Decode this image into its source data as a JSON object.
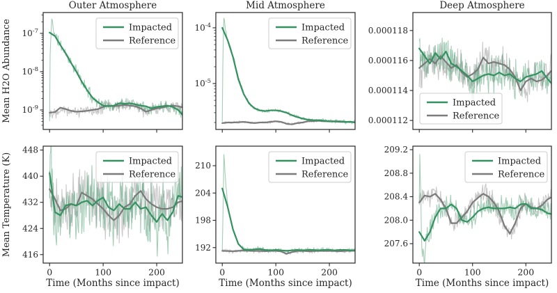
{
  "figure": {
    "colors": {
      "impacted": "#349160",
      "reference": "#7b7b7b",
      "axis": "#262626",
      "legend_border": "#cccccc",
      "legend_bg": "#ffffff"
    },
    "ylabel_top": "Mean H2O Abundance",
    "ylabel_bottom": "Mean Temperature (K)",
    "xlabel": "Time (Months since impact)"
  },
  "chart_data": [
    {
      "id": "outer-atmosphere-abundance",
      "row": 0,
      "col": 0,
      "type": "line",
      "title": "Outer Atmosphere",
      "ylabel": "Mean H2O Abundance",
      "yscale": "log",
      "ylim": [
        3.1e-10,
        3.5e-07
      ],
      "xlim": [
        -12,
        248
      ],
      "xticks": [
        {
          "v": 0,
          "label": "0"
        },
        {
          "v": 100,
          "label": "100"
        },
        {
          "v": 200,
          "label": "200"
        }
      ],
      "xtick_labels_visible": false,
      "yticks": [
        {
          "v": 1e-07,
          "label": "10^{-7}"
        },
        {
          "v": 1e-08,
          "label": "10^{-8}"
        },
        {
          "v": 1e-09,
          "label": "10^{-9}"
        }
      ],
      "minor_log_ticks": true,
      "legend": "upper-right",
      "x0": 0,
      "dx": 10,
      "series": [
        {
          "name": "Impacted",
          "role": "impacted",
          "smooth": [
            1.05e-07,
            8.5e-08,
            5e-08,
            3e-08,
            1.7e-08,
            1e-08,
            5.5e-09,
            3.3e-09,
            2.1e-09,
            1.6e-09,
            1.3e-09,
            1.25e-09,
            1.3e-09,
            1.5e-09,
            1.45e-09,
            1.5e-09,
            1.4e-09,
            1.3e-09,
            1.25e-09,
            1.1e-09,
            1.2e-09,
            1.25e-09,
            1.3e-09,
            1.2e-09,
            1e-09,
            7e-10
          ],
          "noise": {
            "amp": 0.16,
            "seed": 11,
            "pre_x": [
              0,
              2,
              4,
              7,
              10
            ],
            "pre_y": [
              5e-10,
              5e-08,
              2.3e-07,
              1.3e-07,
              1.05e-07
            ]
          }
        },
        {
          "name": "Reference",
          "role": "reference",
          "smooth": [
            8.5e-10,
            8.8e-10,
            1.15e-09,
            1.05e-09,
            9.5e-10,
            9e-10,
            9.2e-10,
            9.5e-10,
            1e-09,
            1.05e-09,
            1.2e-09,
            1.3e-09,
            1.25e-09,
            1.3e-09,
            1.35e-09,
            1.3e-09,
            1.25e-09,
            1.1e-09,
            9e-10,
            1e-09,
            1.1e-09,
            1.15e-09,
            1.25e-09,
            1.3e-09,
            1.25e-09,
            1.15e-09
          ],
          "noise": {
            "amp": 0.17,
            "seed": 22
          }
        }
      ]
    },
    {
      "id": "mid-atmosphere-abundance",
      "row": 0,
      "col": 1,
      "type": "line",
      "title": "Mid Atmosphere",
      "yscale": "log",
      "ylim": [
        1.5e-06,
        0.000188
      ],
      "xlim": [
        -12,
        248
      ],
      "xticks": [
        {
          "v": 0,
          "label": "0"
        },
        {
          "v": 100,
          "label": "100"
        },
        {
          "v": 200,
          "label": "200"
        }
      ],
      "xtick_labels_visible": false,
      "yticks": [
        {
          "v": 0.0001,
          "label": "10^{-4}"
        },
        {
          "v": 1e-05,
          "label": "10^{-5}"
        }
      ],
      "minor_log_ticks": true,
      "legend": "upper-right",
      "x0": 0,
      "dx": 10,
      "series": [
        {
          "name": "Impacted",
          "role": "impacted",
          "smooth": [
            0.0001,
            6e-05,
            3e-05,
            1.2e-05,
            6.5e-06,
            4.4e-06,
            3.6e-06,
            3.3e-06,
            3.2e-06,
            3.3e-06,
            3.3e-06,
            3.2e-06,
            3e-06,
            2.7e-06,
            2.5e-06,
            2.35e-06,
            2.25e-06,
            2.2e-06,
            2.2e-06,
            2.15e-06,
            2.1e-06,
            2.1e-06,
            2.1e-06,
            2.05e-06,
            2.05e-06,
            2e-06
          ],
          "noise": {
            "amp": 0.035,
            "seed": 33,
            "pre_x": [
              0,
              1.5,
              3,
              6,
              10
            ],
            "pre_y": [
              2e-06,
              3e-05,
              0.00015,
              9e-05,
              6.2e-05
            ]
          }
        },
        {
          "name": "Reference",
          "role": "reference",
          "smooth": [
            1.95e-06,
            2e-06,
            2e-06,
            2.02e-06,
            2.05e-06,
            2e-06,
            1.95e-06,
            2e-06,
            2e-06,
            2.05e-06,
            2.1e-06,
            2.05e-06,
            1.9e-06,
            1.85e-06,
            1.95e-06,
            2e-06,
            2.1e-06,
            2.12e-06,
            2.15e-06,
            2.1e-06,
            2.1e-06,
            2.08e-06,
            2.05e-06,
            2.05e-06,
            2.05e-06,
            2e-06
          ],
          "noise": {
            "amp": 0.025,
            "seed": 44
          }
        }
      ]
    },
    {
      "id": "deep-atmosphere-abundance",
      "row": 0,
      "col": 2,
      "type": "line",
      "title": "Deep Atmosphere",
      "yscale": "linear",
      "ylim": [
        0.0001114,
        0.0001192
      ],
      "xlim": [
        -12,
        248
      ],
      "xticks": [
        {
          "v": 0,
          "label": "0"
        },
        {
          "v": 100,
          "label": "100"
        },
        {
          "v": 200,
          "label": "200"
        }
      ],
      "xtick_labels_visible": false,
      "yticks": [
        {
          "v": 0.000118,
          "label": "0.000118"
        },
        {
          "v": 0.000116,
          "label": "0.000116"
        },
        {
          "v": 0.000114,
          "label": "0.000114"
        },
        {
          "v": 0.000112,
          "label": "0.000112"
        }
      ],
      "minor_log_ticks": false,
      "legend": "lower-left",
      "x0": 0,
      "dx": 10,
      "series": [
        {
          "name": "Impacted",
          "role": "impacted",
          "smooth": [
            0.0001168,
            0.0001163,
            0.0001158,
            0.0001165,
            0.0001161,
            0.0001166,
            0.0001158,
            0.0001156,
            0.0001153,
            0.000115,
            0.0001146,
            0.0001148,
            0.000115,
            0.0001151,
            0.000115,
            0.0001152,
            0.000115,
            0.0001151,
            0.0001148,
            0.0001146,
            0.0001149,
            0.000115,
            0.0001151,
            0.0001153,
            0.0001148,
            0.0001144
          ],
          "noise": {
            "amp": 1.35e-06,
            "seed": 55
          }
        },
        {
          "name": "Reference",
          "role": "reference",
          "smooth": [
            0.0001155,
            0.0001158,
            0.0001161,
            0.0001158,
            0.0001163,
            0.0001159,
            0.0001155,
            0.0001157,
            0.0001152,
            0.0001149,
            0.0001151,
            0.0001154,
            0.0001162,
            0.0001158,
            0.0001159,
            0.0001158,
            0.0001157,
            0.0001154,
            0.0001149,
            0.000114,
            0.0001146,
            0.0001148,
            0.0001146,
            0.0001147,
            0.000115,
            0.0001154
          ],
          "noise": {
            "amp": 1.3e-06,
            "seed": 66
          }
        }
      ]
    },
    {
      "id": "outer-atmosphere-temperature",
      "row": 1,
      "col": 0,
      "type": "line",
      "ylabel": "Mean Temperature (K)",
      "xlabel": "Time (Months since impact)",
      "yscale": "linear",
      "ylim": [
        413.4,
        449.2
      ],
      "xlim": [
        -12,
        248
      ],
      "xticks": [
        {
          "v": 0,
          "label": "0"
        },
        {
          "v": 100,
          "label": "100"
        },
        {
          "v": 200,
          "label": "200"
        }
      ],
      "xtick_labels_visible": true,
      "yticks": [
        {
          "v": 448,
          "label": "448"
        },
        {
          "v": 440,
          "label": "440"
        },
        {
          "v": 432,
          "label": "432"
        },
        {
          "v": 424,
          "label": "424"
        },
        {
          "v": 416,
          "label": "416"
        }
      ],
      "minor_log_ticks": false,
      "legend": "upper-right",
      "x0": 0,
      "dx": 10,
      "series": [
        {
          "name": "Impacted",
          "role": "impacted",
          "smooth": [
            441,
            429,
            428,
            431,
            431.5,
            431,
            432,
            432.5,
            431,
            432.5,
            433.5,
            430.5,
            429.5,
            431.5,
            430,
            430,
            432,
            430,
            430.5,
            428,
            426,
            428.5,
            426.5,
            429,
            434,
            433.5
          ],
          "noise": {
            "amp": 11,
            "seed": 77,
            "pre_x": [
              0,
              2,
              5,
              10
            ],
            "pre_y": [
              440,
              448.5,
              436,
              429.5
            ]
          }
        },
        {
          "name": "Reference",
          "role": "reference",
          "smooth": [
            436,
            433,
            429.5,
            430,
            431.5,
            431,
            435,
            434,
            433,
            431.5,
            430,
            428,
            426.5,
            428,
            430.5,
            431.5,
            434,
            435.5,
            433,
            431.5,
            430.5,
            430,
            430,
            430.5,
            432,
            432.5
          ],
          "noise": {
            "amp": 9.5,
            "seed": 88
          }
        }
      ]
    },
    {
      "id": "mid-atmosphere-temperature",
      "row": 1,
      "col": 1,
      "type": "line",
      "xlabel": "Time (Months since impact)",
      "yscale": "linear",
      "ylim": [
        188.6,
        214.3
      ],
      "xlim": [
        -12,
        248
      ],
      "xticks": [
        {
          "v": 0,
          "label": "0"
        },
        {
          "v": 100,
          "label": "100"
        },
        {
          "v": 200,
          "label": "200"
        }
      ],
      "xtick_labels_visible": true,
      "yticks": [
        {
          "v": 210,
          "label": "210"
        },
        {
          "v": 204,
          "label": "204"
        },
        {
          "v": 198,
          "label": "198"
        },
        {
          "v": 192,
          "label": "192"
        }
      ],
      "minor_log_ticks": false,
      "legend": "upper-right",
      "x0": 0,
      "dx": 10,
      "series": [
        {
          "name": "Impacted",
          "role": "impacted",
          "smooth": [
            205,
            201,
            196,
            192.8,
            191.6,
            191.5,
            191.6,
            191.7,
            191.5,
            191.4,
            191.5,
            191.4,
            191.3,
            191.4,
            191.5,
            191.4,
            191.5,
            191.5,
            191.4,
            191.5,
            191.5,
            191.4,
            191.5,
            191.5,
            191.4,
            191.4
          ],
          "noise": {
            "amp": 0.55,
            "seed": 99,
            "pre_x": [
              0,
              1.5,
              3,
              6,
              10
            ],
            "pre_y": [
              191.5,
              200,
              213,
              207,
              201.5
            ]
          }
        },
        {
          "name": "Reference",
          "role": "reference",
          "smooth": [
            191.3,
            191.25,
            191.2,
            191.3,
            191.35,
            191.3,
            191.25,
            191.3,
            191.2,
            191.3,
            191.3,
            191.15,
            190.65,
            191.0,
            191.25,
            191.3,
            191.2,
            191.25,
            191.3,
            191.25,
            191.3,
            191.25,
            191.2,
            191.3,
            191.3,
            191.3
          ],
          "noise": {
            "amp": 0.5,
            "seed": 110
          }
        }
      ]
    },
    {
      "id": "deep-atmosphere-temperature",
      "row": 1,
      "col": 2,
      "type": "line",
      "xlabel": "Time (Months since impact)",
      "yscale": "linear",
      "ylim": [
        207.27,
        209.26
      ],
      "xlim": [
        -12,
        248
      ],
      "xticks": [
        {
          "v": 0,
          "label": "0"
        },
        {
          "v": 100,
          "label": "100"
        },
        {
          "v": 200,
          "label": "200"
        }
      ],
      "xtick_labels_visible": true,
      "yticks": [
        {
          "v": 209.2,
          "label": "209.2"
        },
        {
          "v": 208.8,
          "label": "208.8"
        },
        {
          "v": 208.4,
          "label": "208.4"
        },
        {
          "v": 208.0,
          "label": "208.0"
        },
        {
          "v": 207.6,
          "label": "207.6"
        }
      ],
      "minor_log_ticks": false,
      "legend": "upper-right",
      "x0": 0,
      "dx": 10,
      "series": [
        {
          "name": "Impacted",
          "role": "impacted",
          "smooth": [
            207.8,
            207.65,
            207.8,
            208.05,
            208.2,
            208.2,
            208.27,
            208.2,
            208.0,
            207.97,
            208.05,
            208.15,
            208.2,
            208.22,
            208.2,
            208.2,
            208.2,
            208.22,
            208.2,
            208.27,
            208.28,
            208.2,
            208.2,
            208.18,
            208.12,
            208.1
          ],
          "noise": {
            "amp": 0.22,
            "seed": 121,
            "pre_x": [
              0,
              1,
              2,
              5,
              8,
              12
            ],
            "pre_y": [
              208.3,
              209.1,
              208.9,
              207.5,
              207.35,
              207.55
            ]
          }
        },
        {
          "name": "Reference",
          "role": "reference",
          "smooth": [
            208.3,
            208.42,
            208.4,
            208.45,
            208.35,
            208.2,
            207.95,
            207.95,
            208.05,
            208.15,
            208.3,
            208.38,
            208.45,
            208.4,
            208.3,
            208.15,
            207.9,
            207.77,
            207.95,
            208.2,
            208.28,
            208.22,
            208.2,
            208.25,
            208.35,
            208.4
          ],
          "noise": {
            "amp": 0.18,
            "seed": 132
          }
        }
      ]
    }
  ]
}
